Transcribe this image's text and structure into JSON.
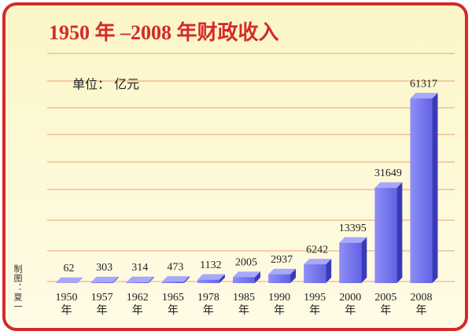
{
  "chart_data": {
    "type": "bar3d",
    "title": "1950 年 –2008 年财政收入",
    "unit_label": "单位： 亿元",
    "credit": "制图：夏一",
    "categories": [
      "1950年",
      "1957年",
      "1962年",
      "1965年",
      "1978年",
      "1985年",
      "1990年",
      "1995年",
      "2000年",
      "2005年",
      "2008年"
    ],
    "values": [
      62,
      303,
      314,
      473,
      1132,
      2005,
      2937,
      6242,
      13395,
      31649,
      61317
    ],
    "color": "#6f6ff0",
    "ylim": [
      0,
      65000
    ]
  }
}
